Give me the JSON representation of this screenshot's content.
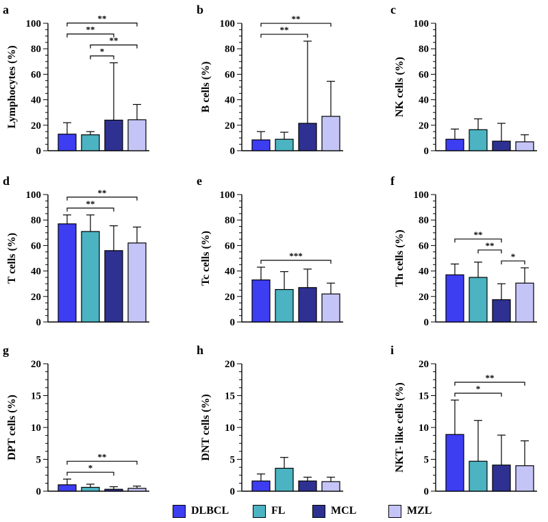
{
  "colors": {
    "DLBCL": "#3d3df2",
    "FL": "#4bb3c1",
    "MCL": "#2e3191",
    "MZL": "#c4c4f7"
  },
  "legend": {
    "items": [
      {
        "label": "DLBCL",
        "color_key": "DLBCL"
      },
      {
        "label": "FL",
        "color_key": "FL"
      },
      {
        "label": "MCL",
        "color_key": "MCL"
      },
      {
        "label": "MZL",
        "color_key": "MZL"
      }
    ]
  },
  "chart_data": [
    {
      "panel": "a",
      "type": "bar",
      "ylabel": "Lymphocytes (%)",
      "categories": [
        "DLBCL",
        "FL",
        "MCL",
        "MZL"
      ],
      "values": [
        13,
        12.5,
        24,
        24.3
      ],
      "errors": [
        9,
        2.5,
        45,
        12
      ],
      "ylim": [
        0,
        100
      ],
      "yticks": [
        0,
        20,
        40,
        60,
        80,
        100
      ],
      "significance": [
        {
          "from": 0,
          "to": 3,
          "label": "**"
        },
        {
          "from": 0,
          "to": 2,
          "label": "**"
        },
        {
          "from": 1,
          "to": 3,
          "label": "**"
        },
        {
          "from": 1,
          "to": 2,
          "label": "*"
        }
      ]
    },
    {
      "panel": "b",
      "type": "bar",
      "ylabel": "B cells (%)",
      "categories": [
        "DLBCL",
        "FL",
        "MCL",
        "MZL"
      ],
      "values": [
        8.5,
        9,
        21.5,
        27
      ],
      "errors": [
        6.5,
        5.5,
        64.5,
        27.5
      ],
      "ylim": [
        0,
        100
      ],
      "yticks": [
        0,
        20,
        40,
        60,
        80,
        100
      ],
      "significance": [
        {
          "from": 0,
          "to": 3,
          "label": "**"
        },
        {
          "from": 0,
          "to": 2,
          "label": "**"
        }
      ]
    },
    {
      "panel": "c",
      "type": "bar",
      "ylabel": "NK cells (%)",
      "categories": [
        "DLBCL",
        "FL",
        "MCL",
        "MZL"
      ],
      "values": [
        9,
        16.5,
        7.5,
        7
      ],
      "errors": [
        8,
        8.5,
        14,
        5.5
      ],
      "ylim": [
        0,
        100
      ],
      "yticks": [
        0,
        20,
        40,
        60,
        80,
        100
      ],
      "significance": []
    },
    {
      "panel": "d",
      "type": "bar",
      "ylabel": "T cells (%)",
      "categories": [
        "DLBCL",
        "FL",
        "MCL",
        "MZL"
      ],
      "values": [
        77,
        71,
        56,
        62
      ],
      "errors": [
        7,
        13,
        19.5,
        12.5
      ],
      "ylim": [
        0,
        100
      ],
      "yticks": [
        0,
        20,
        40,
        60,
        80,
        100
      ],
      "significance": [
        {
          "from": 0,
          "to": 3,
          "label": "**"
        },
        {
          "from": 0,
          "to": 2,
          "label": "**"
        }
      ]
    },
    {
      "panel": "e",
      "type": "bar",
      "ylabel": "Tc cells (%)",
      "categories": [
        "DLBCL",
        "FL",
        "MCL",
        "MZL"
      ],
      "values": [
        33,
        25.5,
        27,
        22
      ],
      "errors": [
        10,
        14,
        14.5,
        8.5
      ],
      "ylim": [
        0,
        100
      ],
      "yticks": [
        0,
        20,
        40,
        60,
        80,
        100
      ],
      "significance": [
        {
          "from": 0,
          "to": 3,
          "label": "***"
        }
      ]
    },
    {
      "panel": "f",
      "type": "bar",
      "ylabel": "Th cells (%)",
      "categories": [
        "DLBCL",
        "FL",
        "MCL",
        "MZL"
      ],
      "values": [
        37,
        35,
        17.5,
        30.5
      ],
      "errors": [
        8.5,
        12,
        12.5,
        12
      ],
      "ylim": [
        0,
        100
      ],
      "yticks": [
        0,
        20,
        40,
        60,
        80,
        100
      ],
      "significance": [
        {
          "from": 0,
          "to": 2,
          "label": "**"
        },
        {
          "from": 1,
          "to": 2,
          "label": "**"
        },
        {
          "from": 2,
          "to": 3,
          "label": "*"
        }
      ]
    },
    {
      "panel": "g",
      "type": "bar",
      "ylabel": "DPT cells (%)",
      "categories": [
        "DLBCL",
        "FL",
        "MCL",
        "MZL"
      ],
      "values": [
        1,
        0.6,
        0.3,
        0.45
      ],
      "errors": [
        0.9,
        0.5,
        0.4,
        0.35
      ],
      "ylim": [
        0,
        20
      ],
      "yticks": [
        0,
        5,
        10,
        15,
        20
      ],
      "significance": [
        {
          "from": 0,
          "to": 3,
          "label": "**"
        },
        {
          "from": 0,
          "to": 2,
          "label": "*"
        }
      ]
    },
    {
      "panel": "h",
      "type": "bar",
      "ylabel": "DNT cells (%)",
      "categories": [
        "DLBCL",
        "FL",
        "MCL",
        "MZL"
      ],
      "values": [
        1.6,
        3.6,
        1.6,
        1.5
      ],
      "errors": [
        1.1,
        1.7,
        0.6,
        0.7
      ],
      "ylim": [
        0,
        20
      ],
      "yticks": [
        0,
        5,
        10,
        15,
        20
      ],
      "significance": []
    },
    {
      "panel": "i",
      "type": "bar",
      "ylabel": "NKT- like cells (%)",
      "categories": [
        "DLBCL",
        "FL",
        "MCL",
        "MZL"
      ],
      "values": [
        8.9,
        4.7,
        4.1,
        4
      ],
      "errors": [
        5.4,
        6.4,
        4.7,
        3.9
      ],
      "ylim": [
        0,
        20
      ],
      "yticks": [
        0,
        5,
        10,
        15,
        20
      ],
      "significance": [
        {
          "from": 0,
          "to": 3,
          "label": "**"
        },
        {
          "from": 0,
          "to": 2,
          "label": "*"
        }
      ]
    }
  ]
}
